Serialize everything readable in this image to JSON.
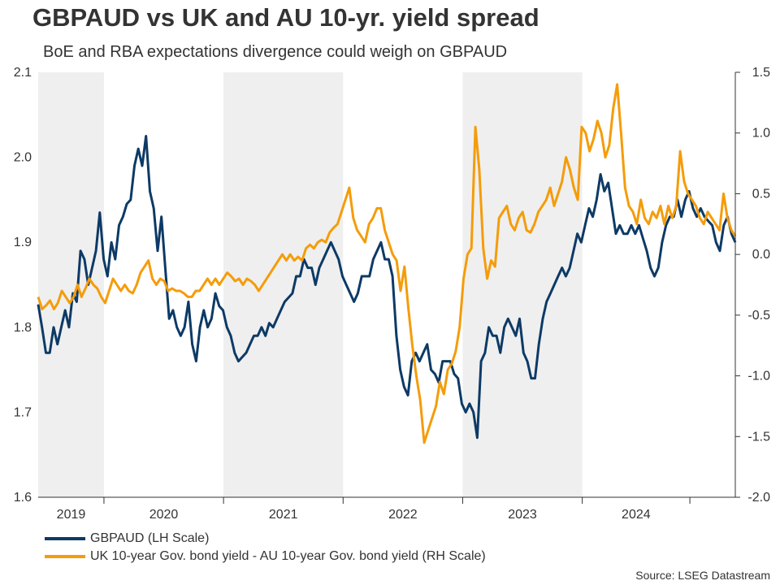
{
  "chart_data": {
    "type": "line",
    "title": "GBPAUD vs UK and AU 10-yr. yield spread",
    "subtitle": "BoE and RBA expectations divergence could weigh on GBPAUD",
    "x_start": 2018.75,
    "x_end": 2024.58,
    "xlim": [
      2018.75,
      2024.58
    ],
    "x_tick_labels": [
      "2019",
      "2020",
      "2021",
      "2022",
      "2023",
      "2024"
    ],
    "x_tick_positions": [
      2019.3,
      2020.3,
      2021.3,
      2022.3,
      2023.3,
      2024.2
    ],
    "year_boundaries": [
      2019.3,
      2020.3,
      2021.3,
      2022.3,
      2023.3,
      2024.2
    ],
    "shaded_periods": [
      [
        2018.75,
        2019.3
      ],
      [
        2020.3,
        2021.3
      ],
      [
        2022.3,
        2023.3
      ]
    ],
    "y_left": {
      "label": "LH Scale",
      "ylim": [
        1.6,
        2.1
      ],
      "ticks": [
        "1.6",
        "1.7",
        "1.8",
        "1.9",
        "2.0",
        "2.1"
      ],
      "tick_values": [
        1.6,
        1.7,
        1.8,
        1.9,
        2.0,
        2.1
      ]
    },
    "y_right": {
      "label": "RH Scale",
      "ylim": [
        -2.0,
        1.5
      ],
      "ticks": [
        "-2.0",
        "-1.5",
        "-1.0",
        "-0.5",
        "0.0",
        "0.5",
        "1.0",
        "1.5"
      ],
      "tick_values": [
        -2.0,
        -1.5,
        -1.0,
        -0.5,
        0.0,
        0.5,
        1.0,
        1.5
      ]
    },
    "series": [
      {
        "name": "GBPAUD (LH Scale)",
        "axis": "left",
        "color": "#0d3a66",
        "values": [
          1.827,
          1.8,
          1.77,
          1.77,
          1.8,
          1.78,
          1.8,
          1.82,
          1.8,
          1.84,
          1.83,
          1.89,
          1.88,
          1.85,
          1.87,
          1.89,
          1.935,
          1.88,
          1.86,
          1.9,
          1.88,
          1.92,
          1.93,
          1.945,
          1.95,
          1.99,
          2.01,
          1.99,
          2.025,
          1.96,
          1.94,
          1.89,
          1.93,
          1.87,
          1.81,
          1.82,
          1.8,
          1.79,
          1.8,
          1.83,
          1.78,
          1.76,
          1.8,
          1.82,
          1.8,
          1.81,
          1.84,
          1.825,
          1.82,
          1.8,
          1.79,
          1.77,
          1.76,
          1.765,
          1.77,
          1.78,
          1.79,
          1.79,
          1.8,
          1.79,
          1.805,
          1.8,
          1.81,
          1.82,
          1.83,
          1.835,
          1.84,
          1.86,
          1.86,
          1.88,
          1.87,
          1.87,
          1.85,
          1.87,
          1.88,
          1.89,
          1.9,
          1.89,
          1.88,
          1.86,
          1.85,
          1.84,
          1.83,
          1.84,
          1.86,
          1.86,
          1.86,
          1.88,
          1.89,
          1.9,
          1.88,
          1.88,
          1.86,
          1.79,
          1.75,
          1.73,
          1.72,
          1.76,
          1.77,
          1.76,
          1.77,
          1.78,
          1.75,
          1.745,
          1.735,
          1.76,
          1.76,
          1.76,
          1.745,
          1.74,
          1.71,
          1.7,
          1.71,
          1.7,
          1.67,
          1.76,
          1.77,
          1.8,
          1.79,
          1.79,
          1.77,
          1.8,
          1.81,
          1.8,
          1.79,
          1.81,
          1.77,
          1.76,
          1.74,
          1.74,
          1.78,
          1.81,
          1.83,
          1.84,
          1.85,
          1.86,
          1.87,
          1.86,
          1.87,
          1.89,
          1.91,
          1.9,
          1.92,
          1.94,
          1.93,
          1.95,
          1.98,
          1.96,
          1.97,
          1.94,
          1.91,
          1.92,
          1.91,
          1.91,
          1.92,
          1.91,
          1.92,
          1.905,
          1.89,
          1.87,
          1.86,
          1.87,
          1.9,
          1.92,
          1.93,
          1.93,
          1.95,
          1.93,
          1.95,
          1.96,
          1.94,
          1.93,
          1.94,
          1.93,
          1.925,
          1.92,
          1.9,
          1.89,
          1.92,
          1.93,
          1.91,
          1.9
        ]
      },
      {
        "name": "UK 10-year Gov. bond yield - AU 10-year Gov. bond yield (RH Scale)",
        "axis": "right",
        "color": "#f59c0a",
        "values": [
          -0.35,
          -0.45,
          -0.42,
          -0.38,
          -0.45,
          -0.4,
          -0.3,
          -0.35,
          -0.4,
          -0.35,
          -0.25,
          -0.35,
          -0.28,
          -0.2,
          -0.25,
          -0.28,
          -0.35,
          -0.4,
          -0.3,
          -0.2,
          -0.25,
          -0.3,
          -0.25,
          -0.3,
          -0.32,
          -0.25,
          -0.15,
          -0.1,
          -0.05,
          -0.2,
          -0.25,
          -0.2,
          -0.22,
          -0.3,
          -0.28,
          -0.3,
          -0.3,
          -0.32,
          -0.35,
          -0.35,
          -0.3,
          -0.3,
          -0.25,
          -0.2,
          -0.25,
          -0.2,
          -0.25,
          -0.2,
          -0.15,
          -0.18,
          -0.22,
          -0.2,
          -0.25,
          -0.2,
          -0.22,
          -0.25,
          -0.3,
          -0.25,
          -0.2,
          -0.15,
          -0.1,
          -0.05,
          0.0,
          -0.05,
          0.0,
          -0.05,
          -0.02,
          -0.05,
          0.05,
          0.08,
          0.05,
          0.1,
          0.12,
          0.1,
          0.18,
          0.22,
          0.25,
          0.35,
          0.45,
          0.55,
          0.3,
          0.2,
          0.15,
          0.1,
          0.25,
          0.3,
          0.38,
          0.38,
          0.2,
          0.1,
          0.0,
          -0.05,
          -0.3,
          -0.1,
          -0.45,
          -0.75,
          -1.0,
          -1.2,
          -1.55,
          -1.45,
          -1.35,
          -1.25,
          -1.05,
          -1.15,
          -0.95,
          -0.9,
          -0.8,
          -0.6,
          -0.2,
          0.0,
          0.05,
          1.05,
          0.7,
          0.05,
          -0.2,
          -0.05,
          -0.1,
          0.3,
          0.35,
          0.4,
          0.25,
          0.2,
          0.3,
          0.35,
          0.2,
          0.18,
          0.25,
          0.35,
          0.4,
          0.45,
          0.55,
          0.4,
          0.5,
          0.6,
          0.8,
          0.7,
          0.55,
          0.45,
          1.05,
          1.0,
          0.85,
          0.95,
          1.1,
          1.0,
          0.8,
          0.9,
          1.2,
          1.4,
          1.0,
          0.55,
          0.4,
          0.35,
          0.25,
          0.45,
          0.3,
          0.25,
          0.35,
          0.3,
          0.4,
          0.25,
          0.4,
          0.3,
          0.4,
          0.85,
          0.6,
          0.5,
          0.45,
          0.4,
          0.3,
          0.25,
          0.35,
          0.3,
          0.25,
          0.2,
          0.5,
          0.3,
          0.2,
          0.15
        ]
      }
    ],
    "legend_position": "bottom-left",
    "source": "Source: LSEG Datastream"
  },
  "colors": {
    "shade": "#efefef",
    "axis": "#333333",
    "gbpaud": "#0d3a66",
    "spread": "#f59c0a"
  }
}
